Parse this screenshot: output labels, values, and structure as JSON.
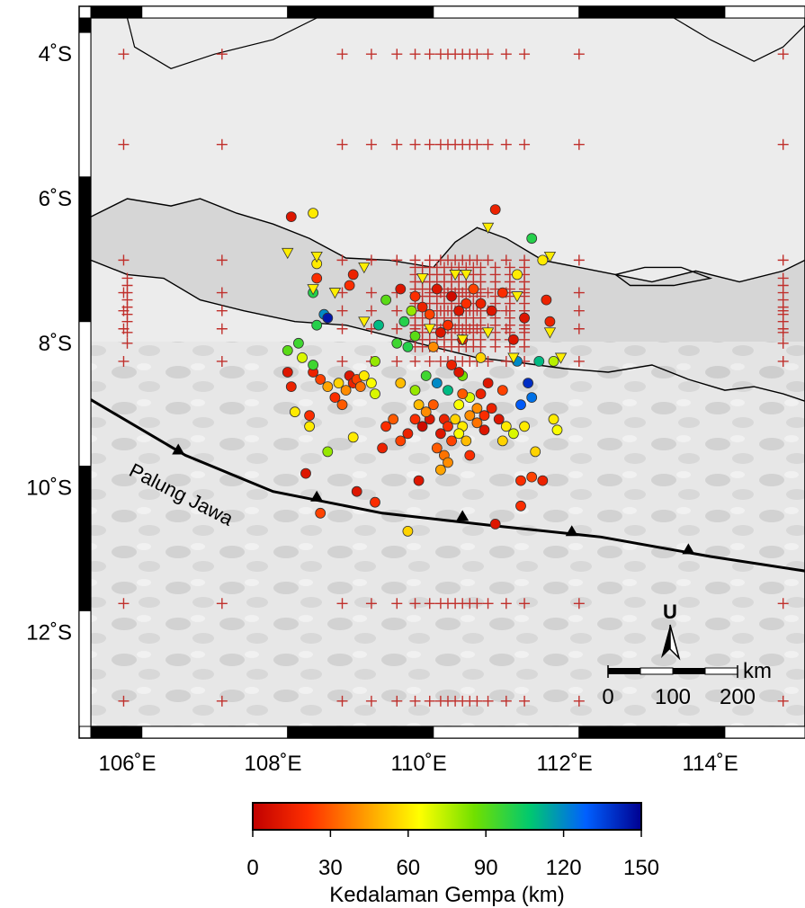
{
  "map": {
    "lon_range": [
      105.5,
      115.3
    ],
    "lat_range": [
      -13.3,
      -3.5
    ],
    "lon_ticks": [
      106,
      108,
      110,
      112,
      114
    ],
    "lat_ticks": [
      -4,
      -6,
      -8,
      -10,
      -12
    ],
    "lon_tick_labels": [
      "106˚E",
      "108˚E",
      "110˚E",
      "112˚E",
      "114˚E"
    ],
    "lat_tick_labels": [
      "4˚S",
      "6˚S",
      "8˚S",
      "10˚S",
      "12˚S"
    ],
    "trench_label": "Palung Jawa",
    "trench_line": [
      [
        105.5,
        -8.78
      ],
      [
        106.8,
        -9.55
      ],
      [
        108.0,
        -10.05
      ],
      [
        109.5,
        -10.35
      ],
      [
        111.0,
        -10.52
      ],
      [
        112.5,
        -10.68
      ],
      [
        114.0,
        -10.95
      ],
      [
        115.3,
        -11.15
      ]
    ],
    "trench_triangles": [
      [
        106.7,
        -9.5
      ],
      [
        108.6,
        -10.15
      ],
      [
        110.6,
        -10.42
      ],
      [
        112.1,
        -10.63
      ],
      [
        113.7,
        -10.88
      ]
    ],
    "coastline_java_north": [
      [
        105.5,
        -6.25
      ],
      [
        106.0,
        -6.0
      ],
      [
        106.6,
        -6.1
      ],
      [
        107.0,
        -6.0
      ],
      [
        107.5,
        -6.2
      ],
      [
        108.0,
        -6.35
      ],
      [
        108.5,
        -6.55
      ],
      [
        109.0,
        -6.82
      ],
      [
        109.6,
        -6.85
      ],
      [
        110.2,
        -6.95
      ],
      [
        110.5,
        -6.6
      ],
      [
        110.8,
        -6.4
      ],
      [
        111.2,
        -6.55
      ],
      [
        111.7,
        -6.85
      ],
      [
        112.2,
        -6.95
      ],
      [
        112.7,
        -7.05
      ],
      [
        113.2,
        -7.15
      ],
      [
        113.8,
        -7.0
      ],
      [
        114.4,
        -7.15
      ],
      [
        115.0,
        -7.0
      ],
      [
        115.3,
        -6.85
      ]
    ],
    "coastline_java_south": [
      [
        105.5,
        -6.85
      ],
      [
        106.0,
        -7.05
      ],
      [
        106.5,
        -7.1
      ],
      [
        107.0,
        -7.4
      ],
      [
        107.6,
        -7.55
      ],
      [
        108.3,
        -7.7
      ],
      [
        109.0,
        -7.75
      ],
      [
        109.6,
        -7.9
      ],
      [
        110.2,
        -8.05
      ],
      [
        110.8,
        -8.2
      ],
      [
        111.4,
        -8.27
      ],
      [
        112.0,
        -8.35
      ],
      [
        112.6,
        -8.4
      ],
      [
        113.2,
        -8.3
      ],
      [
        113.7,
        -8.5
      ],
      [
        114.2,
        -8.65
      ],
      [
        114.6,
        -8.6
      ],
      [
        115.0,
        -8.7
      ],
      [
        115.3,
        -8.8
      ]
    ],
    "coastline_madura": [
      [
        112.7,
        -7.05
      ],
      [
        113.1,
        -6.95
      ],
      [
        113.6,
        -6.95
      ],
      [
        114.0,
        -7.1
      ],
      [
        113.5,
        -7.2
      ],
      [
        112.9,
        -7.2
      ],
      [
        112.7,
        -7.05
      ]
    ],
    "coastline_borneo": [
      [
        106.0,
        -3.5
      ],
      [
        106.1,
        -3.9
      ],
      [
        106.6,
        -4.2
      ],
      [
        107.2,
        -4.0
      ],
      [
        108.0,
        -3.8
      ],
      [
        108.6,
        -3.5
      ]
    ],
    "coastline_bangka": [
      [
        113.5,
        -3.5
      ],
      [
        114.0,
        -3.8
      ],
      [
        114.6,
        -4.1
      ],
      [
        115.0,
        -3.9
      ],
      [
        115.3,
        -3.6
      ]
    ]
  },
  "stations": {
    "lon_grid": [
      105.95,
      107.3,
      108.95,
      109.35,
      109.7,
      109.95,
      110.15,
      110.3,
      110.4,
      110.5,
      110.6,
      110.7,
      110.8,
      110.95,
      111.2,
      111.45,
      112.2,
      115.0
    ],
    "lat_grid": [
      -4.0,
      -5.25,
      -6.85,
      -7.3,
      -7.55,
      -7.8,
      -8.25,
      -11.6,
      -12.95
    ],
    "dense_lons": [
      109.95,
      110.05,
      110.15,
      110.25,
      110.35,
      110.45,
      110.55,
      110.65,
      110.75,
      110.85,
      111.05,
      111.25,
      111.45
    ],
    "dense_lats": [
      -6.95,
      -7.05,
      -7.15,
      -7.25,
      -7.35,
      -7.45,
      -7.55,
      -7.65,
      -7.75,
      -7.85,
      -7.95,
      -8.05
    ],
    "color": "#c0302c"
  },
  "earthquakes": [
    [
      110.35,
      -9.05,
      15
    ],
    [
      110.4,
      -9.15,
      20
    ],
    [
      110.3,
      -9.25,
      10
    ],
    [
      110.45,
      -9.35,
      25
    ],
    [
      110.25,
      -9.45,
      30
    ],
    [
      110.35,
      -9.55,
      35
    ],
    [
      110.4,
      -9.65,
      40
    ],
    [
      110.3,
      -9.75,
      45
    ],
    [
      110.5,
      -9.05,
      55
    ],
    [
      110.6,
      -9.15,
      60
    ],
    [
      110.55,
      -9.25,
      65
    ],
    [
      110.65,
      -9.35,
      50
    ],
    [
      110.7,
      -9.0,
      40
    ],
    [
      110.8,
      -9.1,
      35
    ],
    [
      110.9,
      -9.0,
      20
    ],
    [
      111.0,
      -8.9,
      15
    ],
    [
      111.1,
      -9.05,
      10
    ],
    [
      111.2,
      -9.15,
      60
    ],
    [
      111.3,
      -9.25,
      70
    ],
    [
      111.15,
      -9.35,
      55
    ],
    [
      110.15,
      -9.05,
      10
    ],
    [
      110.05,
      -9.15,
      5
    ],
    [
      109.95,
      -9.05,
      20
    ],
    [
      109.85,
      -9.25,
      15
    ],
    [
      109.75,
      -9.35,
      25
    ],
    [
      110.2,
      -8.85,
      30
    ],
    [
      110.1,
      -8.95,
      40
    ],
    [
      110.0,
      -8.85,
      50
    ],
    [
      110.55,
      -8.85,
      65
    ],
    [
      110.7,
      -8.75,
      70
    ],
    [
      110.85,
      -8.7,
      15
    ],
    [
      110.95,
      -8.55,
      10
    ],
    [
      110.4,
      -8.65,
      110
    ],
    [
      110.25,
      -8.55,
      120
    ],
    [
      110.1,
      -8.45,
      95
    ],
    [
      109.95,
      -8.65,
      80
    ],
    [
      110.6,
      -8.45,
      85
    ],
    [
      111.4,
      -8.85,
      130
    ],
    [
      111.55,
      -8.75,
      125
    ],
    [
      111.5,
      -8.55,
      140
    ],
    [
      111.35,
      -8.25,
      120
    ],
    [
      111.65,
      -8.25,
      110
    ],
    [
      111.85,
      -8.25,
      75
    ],
    [
      109.05,
      -8.45,
      10
    ],
    [
      109.1,
      -8.55,
      15
    ],
    [
      109.15,
      -8.5,
      25
    ],
    [
      109.2,
      -8.6,
      35
    ],
    [
      109.0,
      -8.65,
      40
    ],
    [
      108.9,
      -8.55,
      55
    ],
    [
      108.85,
      -8.75,
      20
    ],
    [
      108.95,
      -8.85,
      30
    ],
    [
      109.25,
      -8.45,
      60
    ],
    [
      109.35,
      -8.55,
      65
    ],
    [
      109.4,
      -8.7,
      70
    ],
    [
      108.75,
      -8.6,
      45
    ],
    [
      108.65,
      -8.5,
      25
    ],
    [
      108.55,
      -8.4,
      15
    ],
    [
      108.2,
      -8.4,
      10
    ],
    [
      108.25,
      -8.6,
      15
    ],
    [
      108.3,
      -8.95,
      60
    ],
    [
      108.5,
      -9.0,
      20
    ],
    [
      108.5,
      -9.15,
      60
    ],
    [
      108.4,
      -8.2,
      70
    ],
    [
      108.55,
      -8.3,
      95
    ],
    [
      108.35,
      -8.0,
      95
    ],
    [
      108.2,
      -8.1,
      90
    ],
    [
      108.6,
      -7.75,
      100
    ],
    [
      108.7,
      -7.6,
      120
    ],
    [
      108.75,
      -7.65,
      145
    ],
    [
      108.55,
      -7.3,
      100
    ],
    [
      108.6,
      -7.1,
      20
    ],
    [
      108.6,
      -6.9,
      60
    ],
    [
      108.55,
      -6.2,
      60
    ],
    [
      108.25,
      -6.25,
      10
    ],
    [
      109.1,
      -9.3,
      60
    ],
    [
      108.75,
      -9.5,
      80
    ],
    [
      109.5,
      -9.45,
      15
    ],
    [
      109.55,
      -9.15,
      20
    ],
    [
      109.65,
      -9.05,
      30
    ],
    [
      109.75,
      -8.55,
      50
    ],
    [
      109.4,
      -8.25,
      80
    ],
    [
      109.7,
      -8.0,
      95
    ],
    [
      109.85,
      -8.05,
      100
    ],
    [
      110.2,
      -8.05,
      40
    ],
    [
      110.6,
      -7.95,
      15
    ],
    [
      110.4,
      -7.75,
      20
    ],
    [
      110.3,
      -7.85,
      10
    ],
    [
      110.15,
      -7.6,
      25
    ],
    [
      110.05,
      -7.5,
      15
    ],
    [
      109.95,
      -7.35,
      20
    ],
    [
      110.25,
      -7.25,
      10
    ],
    [
      110.45,
      -7.35,
      5
    ],
    [
      110.55,
      -7.55,
      10
    ],
    [
      110.65,
      -7.45,
      20
    ],
    [
      110.75,
      -7.25,
      25
    ],
    [
      110.85,
      -7.45,
      15
    ],
    [
      111.0,
      -7.55,
      10
    ],
    [
      111.15,
      -7.3,
      20
    ],
    [
      111.35,
      -7.05,
      60
    ],
    [
      111.45,
      -7.65,
      10
    ],
    [
      111.3,
      -7.95,
      10
    ],
    [
      111.75,
      -7.4,
      15
    ],
    [
      111.8,
      -7.7,
      15
    ],
    [
      110.85,
      -8.2,
      55
    ],
    [
      110.6,
      -8.7,
      30
    ],
    [
      109.95,
      -7.9,
      90
    ],
    [
      109.8,
      -7.7,
      100
    ],
    [
      109.9,
      -7.55,
      80
    ],
    [
      109.45,
      -7.75,
      110
    ],
    [
      109.75,
      -7.25,
      10
    ],
    [
      109.05,
      -7.2,
      20
    ],
    [
      109.1,
      -7.05,
      15
    ],
    [
      109.55,
      -7.4,
      90
    ],
    [
      111.05,
      -6.15,
      15
    ],
    [
      111.55,
      -6.55,
      100
    ],
    [
      111.45,
      -9.15,
      60
    ],
    [
      111.6,
      -9.5,
      55
    ],
    [
      111.85,
      -9.05,
      60
    ],
    [
      111.9,
      -9.2,
      65
    ],
    [
      111.4,
      -9.9,
      20
    ],
    [
      111.55,
      -9.85,
      25
    ],
    [
      111.7,
      -9.9,
      15
    ],
    [
      111.4,
      -10.25,
      20
    ],
    [
      111.05,
      -10.5,
      10
    ],
    [
      110.0,
      -9.9,
      10
    ],
    [
      110.7,
      -9.55,
      20
    ],
    [
      109.15,
      -10.05,
      10
    ],
    [
      109.4,
      -10.2,
      20
    ],
    [
      108.65,
      -10.35,
      25
    ],
    [
      108.45,
      -9.8,
      10
    ],
    [
      109.85,
      -10.6,
      55
    ],
    [
      110.9,
      -9.2,
      10
    ],
    [
      111.15,
      -8.65,
      25
    ],
    [
      110.8,
      -8.9,
      40
    ],
    [
      110.45,
      -8.3,
      15
    ],
    [
      110.55,
      -8.4,
      10
    ],
    [
      111.7,
      -6.85,
      60
    ]
  ],
  "triangles": [
    [
      108.2,
      -6.75
    ],
    [
      108.6,
      -6.8
    ],
    [
      109.25,
      -6.95
    ],
    [
      110.65,
      -7.05
    ],
    [
      110.95,
      -6.4
    ],
    [
      111.8,
      -6.8
    ],
    [
      108.55,
      -7.25
    ],
    [
      108.85,
      -7.3
    ],
    [
      109.25,
      -7.7
    ],
    [
      110.15,
      -7.8
    ],
    [
      110.6,
      -7.95
    ],
    [
      110.95,
      -7.85
    ],
    [
      111.35,
      -7.35
    ],
    [
      111.3,
      -8.2
    ],
    [
      111.8,
      -7.85
    ],
    [
      111.95,
      -8.2
    ],
    [
      110.5,
      -7.05
    ],
    [
      110.05,
      -7.1
    ]
  ],
  "scale_bar": {
    "unit_label": "km",
    "tick_labels": [
      "0",
      "100",
      "200"
    ],
    "north_label": "U"
  },
  "colorbar": {
    "title": "Kedalaman Gempa (km)",
    "tick_values": [
      0,
      30,
      60,
      90,
      120,
      150
    ],
    "tick_labels": [
      "0",
      "30",
      "60",
      "90",
      "120",
      "150"
    ],
    "range": [
      0,
      150
    ],
    "colors": [
      "#c00000",
      "#ff3000",
      "#ff9a00",
      "#ffff00",
      "#70e000",
      "#00c870",
      "#0060ff",
      "#000090"
    ]
  }
}
